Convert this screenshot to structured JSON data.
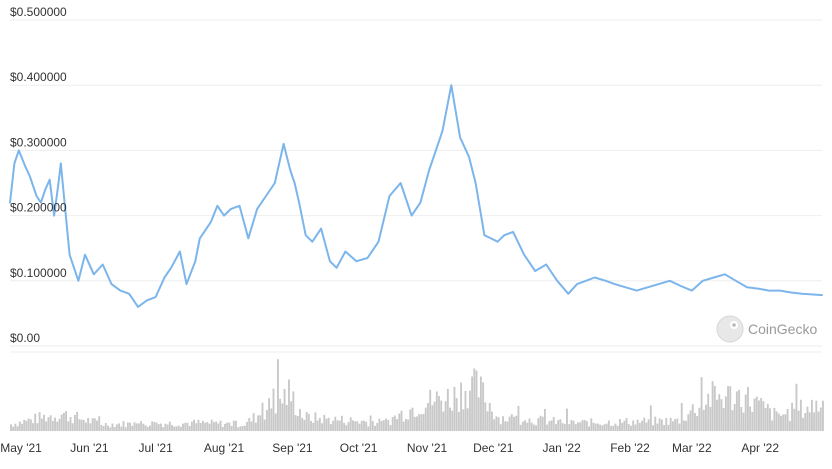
{
  "watermark": {
    "label": "CoinGecko"
  },
  "colors": {
    "price_line": "#7cb5ec",
    "volume_bar": "#c8c8c8",
    "grid": "#eeeeee",
    "tick_text": "#333333"
  },
  "chart_data": [
    {
      "type": "line",
      "title": "",
      "xlabel": "",
      "ylabel": "",
      "ylim": [
        0,
        0.5
      ],
      "x_ticks": [
        "May '21",
        "Jun '21",
        "Jul '21",
        "Aug '21",
        "Sep '21",
        "Oct '21",
        "Nov '21",
        "Dec '21",
        "Jan '22",
        "Feb '22",
        "Mar '22",
        "Apr '22"
      ],
      "y_ticks": [
        "$0.00",
        "$0.100000",
        "$0.200000",
        "$0.300000",
        "$0.400000",
        "$0.500000"
      ],
      "grid": true,
      "x": [
        "2021-04-26",
        "2021-04-28",
        "2021-04-30",
        "2021-05-03",
        "2021-05-05",
        "2021-05-08",
        "2021-05-10",
        "2021-05-12",
        "2021-05-14",
        "2021-05-16",
        "2021-05-18",
        "2021-05-19",
        "2021-05-21",
        "2021-05-23",
        "2021-05-25",
        "2021-05-27",
        "2021-05-30",
        "2021-06-03",
        "2021-06-07",
        "2021-06-11",
        "2021-06-15",
        "2021-06-19",
        "2021-06-23",
        "2021-06-27",
        "2021-07-01",
        "2021-07-05",
        "2021-07-08",
        "2021-07-12",
        "2021-07-15",
        "2021-07-19",
        "2021-07-21",
        "2021-07-23",
        "2021-07-26",
        "2021-07-29",
        "2021-08-01",
        "2021-08-04",
        "2021-08-08",
        "2021-08-12",
        "2021-08-16",
        "2021-08-20",
        "2021-08-24",
        "2021-08-28",
        "2021-08-31",
        "2021-09-02",
        "2021-09-04",
        "2021-09-07",
        "2021-09-10",
        "2021-09-14",
        "2021-09-18",
        "2021-09-21",
        "2021-09-25",
        "2021-09-30",
        "2021-10-05",
        "2021-10-10",
        "2021-10-15",
        "2021-10-20",
        "2021-10-25",
        "2021-10-29",
        "2021-11-02",
        "2021-11-05",
        "2021-11-08",
        "2021-11-12",
        "2021-11-16",
        "2021-11-20",
        "2021-11-23",
        "2021-11-25",
        "2021-11-27",
        "2021-11-30",
        "2021-12-03",
        "2021-12-06",
        "2021-12-10",
        "2021-12-15",
        "2021-12-20",
        "2021-12-25",
        "2021-12-30",
        "2022-01-04",
        "2022-01-08",
        "2022-01-12",
        "2022-01-16",
        "2022-01-21",
        "2022-01-25",
        "2022-01-30",
        "2022-02-04",
        "2022-02-09",
        "2022-02-14",
        "2022-02-19",
        "2022-02-24",
        "2022-03-01",
        "2022-03-06",
        "2022-03-11",
        "2022-03-16",
        "2022-03-21",
        "2022-03-26",
        "2022-03-31",
        "2022-04-05",
        "2022-04-10",
        "2022-04-15",
        "2022-04-20",
        "2022-04-25",
        "2022-04-29"
      ],
      "series": [
        {
          "values": [
            0.22,
            0.28,
            0.3,
            0.275,
            0.26,
            0.23,
            0.22,
            0.24,
            0.255,
            0.2,
            0.25,
            0.28,
            0.21,
            0.14,
            0.12,
            0.1,
            0.14,
            0.11,
            0.125,
            0.095,
            0.085,
            0.08,
            0.06,
            0.07,
            0.075,
            0.105,
            0.12,
            0.145,
            0.095,
            0.13,
            0.165,
            0.175,
            0.19,
            0.215,
            0.2,
            0.21,
            0.215,
            0.165,
            0.21,
            0.23,
            0.25,
            0.31,
            0.27,
            0.25,
            0.22,
            0.17,
            0.16,
            0.18,
            0.13,
            0.12,
            0.145,
            0.13,
            0.135,
            0.16,
            0.23,
            0.25,
            0.2,
            0.22,
            0.27,
            0.3,
            0.33,
            0.4,
            0.32,
            0.29,
            0.25,
            0.21,
            0.17,
            0.165,
            0.16,
            0.17,
            0.175,
            0.14,
            0.115,
            0.125,
            0.1,
            0.08,
            0.095,
            0.1,
            0.105,
            0.1,
            0.095,
            0.09,
            0.085,
            0.09,
            0.095,
            0.1,
            0.092,
            0.085,
            0.1,
            0.105,
            0.11,
            0.1,
            0.09,
            0.088,
            0.085,
            0.085,
            0.082,
            0.08,
            0.079,
            0.078
          ]
        }
      ]
    },
    {
      "type": "bar",
      "title": "",
      "xlabel": "",
      "ylabel": "",
      "x": [
        "2021-04-26",
        "2021-05-10",
        "2021-05-19",
        "2021-06-07",
        "2021-07-20",
        "2021-08-10",
        "2021-08-30",
        "2021-09-06",
        "2021-10-12",
        "2021-10-30",
        "2021-11-12",
        "2021-11-19",
        "2021-11-24",
        "2021-12-03",
        "2022-01-06",
        "2022-02-22",
        "2022-03-09",
        "2022-03-24",
        "2022-04-08",
        "2022-04-28"
      ],
      "series": [
        {
          "name": "",
          "values": [
            0.1,
            0.2,
            0.25,
            0.1,
            0.12,
            0.1,
            0.55,
            0.2,
            0.12,
            0.42,
            0.5,
            0.65,
            0.62,
            0.2,
            0.12,
            0.15,
            0.5,
            0.52,
            0.22,
            0.4
          ]
        }
      ]
    }
  ]
}
